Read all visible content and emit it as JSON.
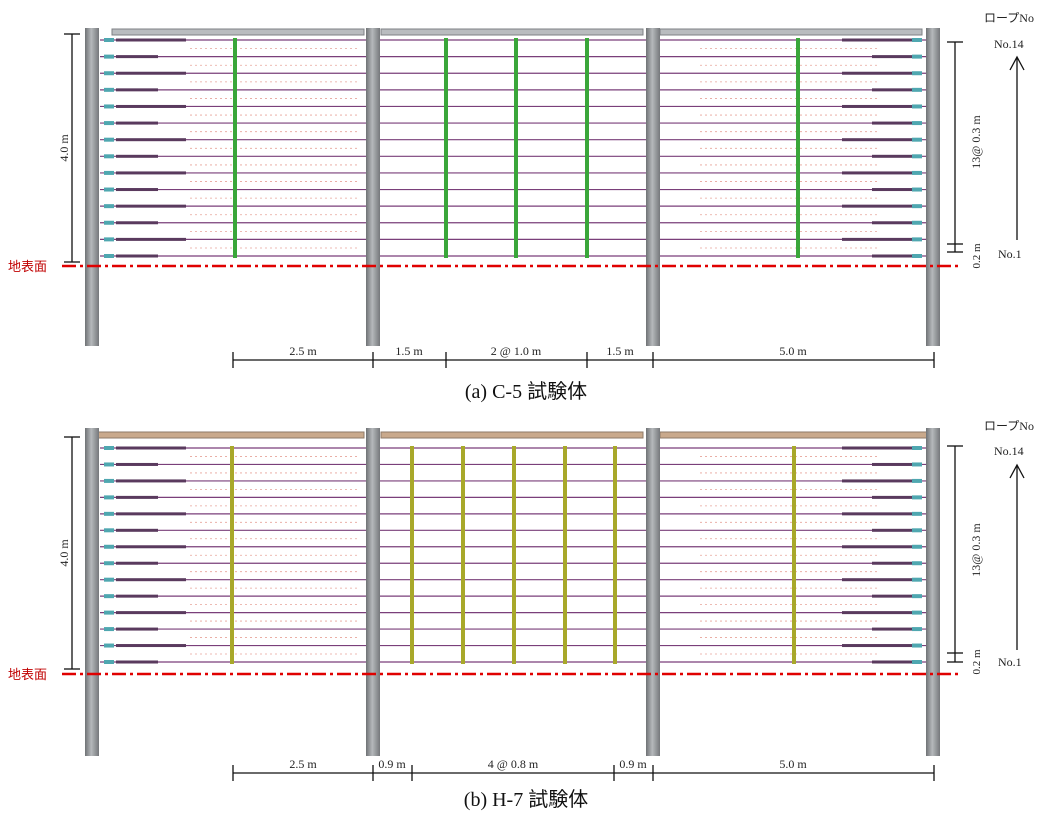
{
  "panels": [
    {
      "id": "a",
      "caption": "(a) C-5 試験体",
      "height_label": "4.0 m",
      "spacing_label": "13@ 0.3 m",
      "bottom_label": "0.2 m",
      "ground_label": "地表面",
      "rope_header": "ロープNo",
      "rope_top": "No.14",
      "rope_bottom": "No.1",
      "dimensions": [
        "2.5 m",
        "1.5 m",
        "2 @ 1.0 m",
        "1.5 m",
        "5.0 m"
      ],
      "stanchion_color": "#3aa63a"
    },
    {
      "id": "b",
      "caption": "(b) H-7 試験体",
      "height_label": "4.0 m",
      "spacing_label": "13@ 0.3 m",
      "bottom_label": "0.2 m",
      "ground_label": "地表面",
      "rope_header": "ロープNo",
      "rope_top": "No.14",
      "rope_bottom": "No.1",
      "dimensions": [
        "2.5 m",
        "0.9 m",
        "4 @ 0.8 m",
        "0.9 m",
        "5.0 m"
      ],
      "stanchion_color": "#a8a82a"
    }
  ],
  "colors": {
    "post": "#8e9194",
    "rope": "#7a3f7a",
    "ground_line": "#e00000",
    "ground_text": "#c00000"
  }
}
